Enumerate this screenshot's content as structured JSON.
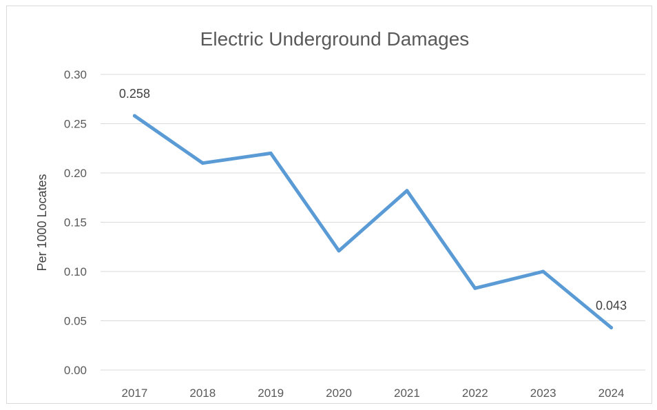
{
  "chart_data": {
    "type": "line",
    "title": "Electric Underground Damages",
    "xlabel": "",
    "ylabel": "Per 1000 Locates",
    "categories": [
      "2017",
      "2018",
      "2019",
      "2020",
      "2021",
      "2022",
      "2023",
      "2024"
    ],
    "series": [
      {
        "values": [
          0.258,
          0.21,
          0.22,
          0.121,
          0.182,
          0.083,
          0.1,
          0.043
        ],
        "color": "#5b9bd5"
      }
    ],
    "data_labels": [
      {
        "index": 0,
        "text": "0.258"
      },
      {
        "index": 7,
        "text": "0.043"
      }
    ],
    "ylim": [
      0,
      0.3
    ],
    "yticks": [
      "0.00",
      "0.05",
      "0.10",
      "0.15",
      "0.20",
      "0.25",
      "0.30"
    ],
    "grid": true,
    "legend": "none"
  }
}
